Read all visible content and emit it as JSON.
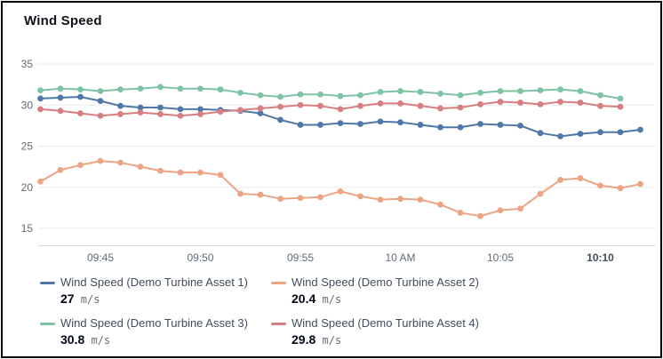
{
  "widget": {
    "title": "Wind Speed"
  },
  "colors": {
    "border": "#000000",
    "title": "#0f141a",
    "grid": "#e9ebed",
    "axis_line": "#d5dbdb",
    "tick_label": "#5f6b7a",
    "tick_label_bold": "#414d5c",
    "legend_label": "#414d5c",
    "legend_value": "#000716",
    "legend_unit": "#687078"
  },
  "chart_data": {
    "type": "line",
    "title": "Wind Speed",
    "xlabel": "",
    "ylabel": "",
    "grid": "horizontal",
    "legend_position": "bottom",
    "unit": "m/s",
    "y_ticks": [
      35,
      30,
      25,
      20,
      15
    ],
    "ylim": [
      12.8,
      36.5
    ],
    "x_axis": {
      "start_time": "09:42",
      "step_minutes": 1,
      "ticks": [
        {
          "label": "09:45",
          "minute": 3,
          "bold": false
        },
        {
          "label": "09:50",
          "minute": 8,
          "bold": false
        },
        {
          "label": "09:55",
          "minute": 13,
          "bold": false
        },
        {
          "label": "10 AM",
          "minute": 18,
          "bold": false
        },
        {
          "label": "10:05",
          "minute": 23,
          "bold": false
        },
        {
          "label": "10:10",
          "minute": 28,
          "bold": true
        }
      ]
    },
    "series": [
      {
        "name": "Wind Speed (Demo Turbine Asset 1)",
        "color": "#4f78a8",
        "latest_value": "27",
        "unit": "m/s",
        "values": [
          30.8,
          30.9,
          31.0,
          30.5,
          29.9,
          29.7,
          29.7,
          29.5,
          29.5,
          29.4,
          29.3,
          29.0,
          28.2,
          27.6,
          27.6,
          27.8,
          27.7,
          28.0,
          27.9,
          27.6,
          27.3,
          27.3,
          27.7,
          27.6,
          27.5,
          26.6,
          26.2,
          26.5,
          26.7,
          26.7,
          27.0
        ]
      },
      {
        "name": "Wind Speed (Demo Turbine Asset 2)",
        "color": "#eba584",
        "latest_value": "20.4",
        "unit": "m/s",
        "values": [
          20.7,
          22.1,
          22.7,
          23.2,
          23.0,
          22.5,
          22.0,
          21.8,
          21.8,
          21.5,
          19.2,
          19.1,
          18.6,
          18.7,
          18.8,
          19.5,
          18.9,
          18.5,
          18.6,
          18.5,
          17.9,
          16.9,
          16.5,
          17.2,
          17.4,
          19.2,
          20.9,
          21.1,
          20.2,
          19.9,
          20.4
        ]
      },
      {
        "name": "Wind Speed (Demo Turbine Asset 3)",
        "color": "#7dc3a4",
        "latest_value": "30.8",
        "unit": "m/s",
        "values": [
          31.8,
          32.0,
          31.9,
          31.7,
          31.9,
          32.0,
          32.2,
          32.0,
          32.0,
          31.9,
          31.5,
          31.2,
          31.0,
          31.3,
          31.3,
          31.1,
          31.2,
          31.6,
          31.7,
          31.6,
          31.4,
          31.2,
          31.5,
          31.7,
          31.7,
          31.8,
          31.9,
          31.7,
          31.2,
          30.8
        ]
      },
      {
        "name": "Wind Speed (Demo Turbine Asset 4)",
        "color": "#d87e82",
        "latest_value": "29.8",
        "unit": "m/s",
        "values": [
          29.5,
          29.3,
          29.0,
          28.7,
          28.9,
          29.1,
          28.9,
          28.7,
          28.9,
          29.2,
          29.4,
          29.6,
          29.8,
          30.0,
          29.9,
          29.5,
          29.9,
          30.2,
          30.2,
          29.9,
          29.6,
          29.7,
          30.1,
          30.4,
          30.3,
          30.1,
          30.4,
          30.3,
          29.9,
          29.8
        ]
      }
    ]
  }
}
